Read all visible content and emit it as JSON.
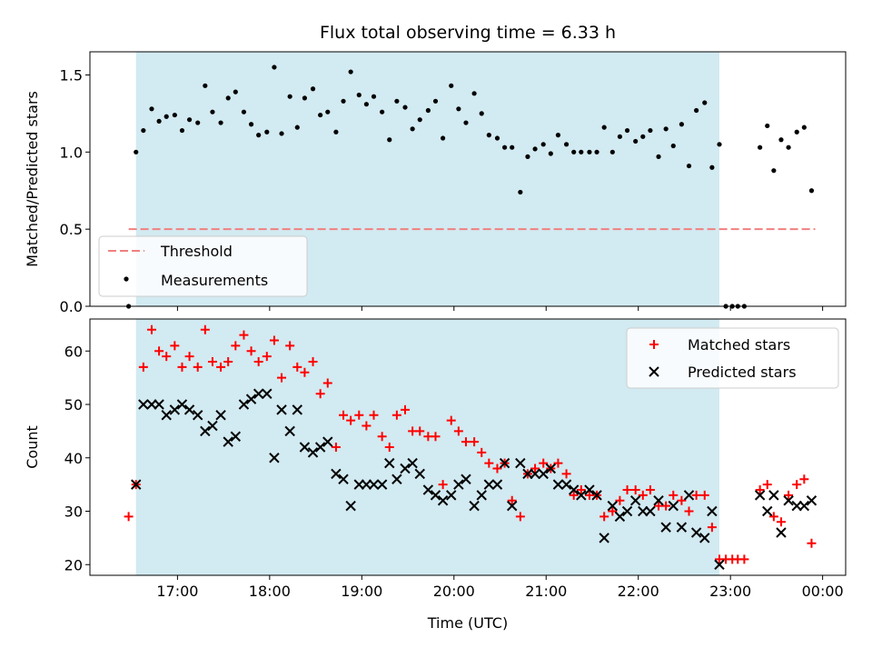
{
  "chart_data": [
    {
      "type": "scatter",
      "title": "Flux total observing time = 6.33 h",
      "xlabel": "",
      "ylabel": "Matched/Predicted stars",
      "xlim": [
        16.05,
        24.25
      ],
      "ylim": [
        0.0,
        1.65
      ],
      "yticks": [
        0.0,
        0.5,
        1.0,
        1.5
      ],
      "ytick_labels": [
        "0.0",
        "0.5",
        "1.0",
        "1.5"
      ],
      "shaded_span": [
        16.55,
        22.88
      ],
      "shaded_color": "#add8e6",
      "legend_position": "lower-left",
      "threshold": {
        "name": "Threshold",
        "value": 0.5,
        "x": [
          16.47,
          23.92
        ],
        "color": "#f08080"
      },
      "series": [
        {
          "name": "Measurements",
          "marker": "dot",
          "color": "#000000",
          "points": [
            [
              16.47,
              0.0
            ],
            [
              16.55,
              1.0
            ],
            [
              16.63,
              1.14
            ],
            [
              16.72,
              1.28
            ],
            [
              16.8,
              1.2
            ],
            [
              16.88,
              1.23
            ],
            [
              16.97,
              1.24
            ],
            [
              17.05,
              1.14
            ],
            [
              17.13,
              1.21
            ],
            [
              17.22,
              1.19
            ],
            [
              17.3,
              1.43
            ],
            [
              17.38,
              1.26
            ],
            [
              17.47,
              1.19
            ],
            [
              17.55,
              1.35
            ],
            [
              17.63,
              1.39
            ],
            [
              17.72,
              1.26
            ],
            [
              17.8,
              1.18
            ],
            [
              17.88,
              1.11
            ],
            [
              17.97,
              1.13
            ],
            [
              18.05,
              1.55
            ],
            [
              18.13,
              1.12
            ],
            [
              18.22,
              1.36
            ],
            [
              18.3,
              1.16
            ],
            [
              18.38,
              1.35
            ],
            [
              18.47,
              1.41
            ],
            [
              18.55,
              1.24
            ],
            [
              18.63,
              1.26
            ],
            [
              18.72,
              1.13
            ],
            [
              18.8,
              1.33
            ],
            [
              18.88,
              1.52
            ],
            [
              18.97,
              1.37
            ],
            [
              19.05,
              1.31
            ],
            [
              19.13,
              1.36
            ],
            [
              19.22,
              1.26
            ],
            [
              19.3,
              1.08
            ],
            [
              19.38,
              1.33
            ],
            [
              19.47,
              1.29
            ],
            [
              19.55,
              1.15
            ],
            [
              19.63,
              1.21
            ],
            [
              19.72,
              1.27
            ],
            [
              19.8,
              1.33
            ],
            [
              19.88,
              1.09
            ],
            [
              19.97,
              1.43
            ],
            [
              20.05,
              1.28
            ],
            [
              20.13,
              1.19
            ],
            [
              20.22,
              1.38
            ],
            [
              20.3,
              1.25
            ],
            [
              20.38,
              1.11
            ],
            [
              20.47,
              1.09
            ],
            [
              20.55,
              1.03
            ],
            [
              20.63,
              1.03
            ],
            [
              20.72,
              0.74
            ],
            [
              20.8,
              0.97
            ],
            [
              20.88,
              1.02
            ],
            [
              20.97,
              1.05
            ],
            [
              21.05,
              0.99
            ],
            [
              21.13,
              1.11
            ],
            [
              21.22,
              1.05
            ],
            [
              21.3,
              1.0
            ],
            [
              21.38,
              1.0
            ],
            [
              21.47,
              1.0
            ],
            [
              21.55,
              1.0
            ],
            [
              21.63,
              1.16
            ],
            [
              21.72,
              1.0
            ],
            [
              21.8,
              1.1
            ],
            [
              21.88,
              1.14
            ],
            [
              21.97,
              1.07
            ],
            [
              22.05,
              1.1
            ],
            [
              22.13,
              1.14
            ],
            [
              22.22,
              0.97
            ],
            [
              22.3,
              1.15
            ],
            [
              22.38,
              1.04
            ],
            [
              22.47,
              1.18
            ],
            [
              22.55,
              0.91
            ],
            [
              22.63,
              1.27
            ],
            [
              22.72,
              1.32
            ],
            [
              22.8,
              0.9
            ],
            [
              22.88,
              1.05
            ],
            [
              22.95,
              0.0
            ],
            [
              23.02,
              0.0
            ],
            [
              23.08,
              0.0
            ],
            [
              23.15,
              0.0
            ],
            [
              23.32,
              1.03
            ],
            [
              23.4,
              1.17
            ],
            [
              23.47,
              0.88
            ],
            [
              23.55,
              1.08
            ],
            [
              23.63,
              1.03
            ],
            [
              23.72,
              1.13
            ],
            [
              23.8,
              1.16
            ],
            [
              23.88,
              0.75
            ]
          ]
        }
      ]
    },
    {
      "type": "scatter",
      "title": "",
      "xlabel": "Time (UTC)",
      "ylabel": "Count",
      "xlim": [
        16.05,
        24.25
      ],
      "ylim": [
        18,
        66
      ],
      "yticks": [
        20,
        30,
        40,
        50,
        60
      ],
      "ytick_labels": [
        "20",
        "30",
        "40",
        "50",
        "60"
      ],
      "xticks": [
        17,
        18,
        19,
        20,
        21,
        22,
        23,
        24
      ],
      "xtick_labels": [
        "17:00",
        "18:00",
        "19:00",
        "20:00",
        "21:00",
        "22:00",
        "23:00",
        "00:00"
      ],
      "shaded_span": [
        16.55,
        22.88
      ],
      "shaded_color": "#add8e6",
      "legend_position": "upper-right",
      "series": [
        {
          "name": "Matched stars",
          "marker": "plus",
          "color": "#ff0000",
          "points": [
            [
              16.47,
              29
            ],
            [
              16.55,
              35
            ],
            [
              16.63,
              57
            ],
            [
              16.72,
              64
            ],
            [
              16.8,
              60
            ],
            [
              16.88,
              59
            ],
            [
              16.97,
              61
            ],
            [
              17.05,
              57
            ],
            [
              17.13,
              59
            ],
            [
              17.22,
              57
            ],
            [
              17.3,
              64
            ],
            [
              17.38,
              58
            ],
            [
              17.47,
              57
            ],
            [
              17.55,
              58
            ],
            [
              17.63,
              61
            ],
            [
              17.72,
              63
            ],
            [
              17.8,
              60
            ],
            [
              17.88,
              58
            ],
            [
              17.97,
              59
            ],
            [
              18.05,
              62
            ],
            [
              18.13,
              55
            ],
            [
              18.22,
              61
            ],
            [
              18.3,
              57
            ],
            [
              18.38,
              56
            ],
            [
              18.47,
              58
            ],
            [
              18.55,
              52
            ],
            [
              18.63,
              54
            ],
            [
              18.72,
              42
            ],
            [
              18.8,
              48
            ],
            [
              18.88,
              47
            ],
            [
              18.97,
              48
            ],
            [
              19.05,
              46
            ],
            [
              19.13,
              48
            ],
            [
              19.22,
              44
            ],
            [
              19.3,
              42
            ],
            [
              19.38,
              48
            ],
            [
              19.47,
              49
            ],
            [
              19.55,
              45
            ],
            [
              19.63,
              45
            ],
            [
              19.72,
              44
            ],
            [
              19.8,
              44
            ],
            [
              19.88,
              35
            ],
            [
              19.97,
              47
            ],
            [
              20.05,
              45
            ],
            [
              20.13,
              43
            ],
            [
              20.22,
              43
            ],
            [
              20.3,
              41
            ],
            [
              20.38,
              39
            ],
            [
              20.47,
              38
            ],
            [
              20.55,
              39
            ],
            [
              20.63,
              32
            ],
            [
              20.72,
              29
            ],
            [
              20.8,
              37
            ],
            [
              20.88,
              38
            ],
            [
              20.97,
              39
            ],
            [
              21.05,
              38
            ],
            [
              21.13,
              39
            ],
            [
              21.22,
              37
            ],
            [
              21.3,
              33
            ],
            [
              21.38,
              34
            ],
            [
              21.47,
              33
            ],
            [
              21.55,
              33
            ],
            [
              21.63,
              29
            ],
            [
              21.72,
              30
            ],
            [
              21.8,
              32
            ],
            [
              21.88,
              34
            ],
            [
              21.97,
              34
            ],
            [
              22.05,
              33
            ],
            [
              22.13,
              34
            ],
            [
              22.22,
              31
            ],
            [
              22.3,
              31
            ],
            [
              22.38,
              33
            ],
            [
              22.47,
              32
            ],
            [
              22.55,
              30
            ],
            [
              22.63,
              33
            ],
            [
              22.72,
              33
            ],
            [
              22.8,
              27
            ],
            [
              22.88,
              21
            ],
            [
              22.95,
              21
            ],
            [
              23.02,
              21
            ],
            [
              23.08,
              21
            ],
            [
              23.15,
              21
            ],
            [
              23.32,
              34
            ],
            [
              23.4,
              35
            ],
            [
              23.47,
              29
            ],
            [
              23.55,
              28
            ],
            [
              23.63,
              33
            ],
            [
              23.72,
              35
            ],
            [
              23.8,
              36
            ],
            [
              23.88,
              24
            ]
          ]
        },
        {
          "name": "Predicted stars",
          "marker": "x",
          "color": "#000000",
          "points": [
            [
              16.55,
              35
            ],
            [
              16.63,
              50
            ],
            [
              16.72,
              50
            ],
            [
              16.8,
              50
            ],
            [
              16.88,
              48
            ],
            [
              16.97,
              49
            ],
            [
              17.05,
              50
            ],
            [
              17.13,
              49
            ],
            [
              17.22,
              48
            ],
            [
              17.3,
              45
            ],
            [
              17.38,
              46
            ],
            [
              17.47,
              48
            ],
            [
              17.55,
              43
            ],
            [
              17.63,
              44
            ],
            [
              17.72,
              50
            ],
            [
              17.8,
              51
            ],
            [
              17.88,
              52
            ],
            [
              17.97,
              52
            ],
            [
              18.05,
              40
            ],
            [
              18.13,
              49
            ],
            [
              18.22,
              45
            ],
            [
              18.3,
              49
            ],
            [
              18.38,
              42
            ],
            [
              18.47,
              41
            ],
            [
              18.55,
              42
            ],
            [
              18.63,
              43
            ],
            [
              18.72,
              37
            ],
            [
              18.8,
              36
            ],
            [
              18.88,
              31
            ],
            [
              18.97,
              35
            ],
            [
              19.05,
              35
            ],
            [
              19.13,
              35
            ],
            [
              19.22,
              35
            ],
            [
              19.3,
              39
            ],
            [
              19.38,
              36
            ],
            [
              19.47,
              38
            ],
            [
              19.55,
              39
            ],
            [
              19.63,
              37
            ],
            [
              19.72,
              34
            ],
            [
              19.8,
              33
            ],
            [
              19.88,
              32
            ],
            [
              19.97,
              33
            ],
            [
              20.05,
              35
            ],
            [
              20.13,
              36
            ],
            [
              20.22,
              31
            ],
            [
              20.3,
              33
            ],
            [
              20.38,
              35
            ],
            [
              20.47,
              35
            ],
            [
              20.55,
              39
            ],
            [
              20.63,
              31
            ],
            [
              20.72,
              39
            ],
            [
              20.8,
              37
            ],
            [
              20.88,
              37
            ],
            [
              20.97,
              37
            ],
            [
              21.05,
              38
            ],
            [
              21.13,
              35
            ],
            [
              21.22,
              35
            ],
            [
              21.3,
              34
            ],
            [
              21.38,
              33
            ],
            [
              21.47,
              34
            ],
            [
              21.55,
              33
            ],
            [
              21.63,
              25
            ],
            [
              21.72,
              31
            ],
            [
              21.8,
              29
            ],
            [
              21.88,
              30
            ],
            [
              21.97,
              32
            ],
            [
              22.05,
              30
            ],
            [
              22.13,
              30
            ],
            [
              22.22,
              32
            ],
            [
              22.3,
              27
            ],
            [
              22.38,
              31
            ],
            [
              22.47,
              27
            ],
            [
              22.55,
              33
            ],
            [
              22.63,
              26
            ],
            [
              22.72,
              25
            ],
            [
              22.8,
              30
            ],
            [
              22.88,
              20
            ],
            [
              23.32,
              33
            ],
            [
              23.4,
              30
            ],
            [
              23.47,
              33
            ],
            [
              23.55,
              26
            ],
            [
              23.63,
              32
            ],
            [
              23.72,
              31
            ],
            [
              23.8,
              31
            ],
            [
              23.88,
              32
            ]
          ]
        }
      ]
    }
  ]
}
